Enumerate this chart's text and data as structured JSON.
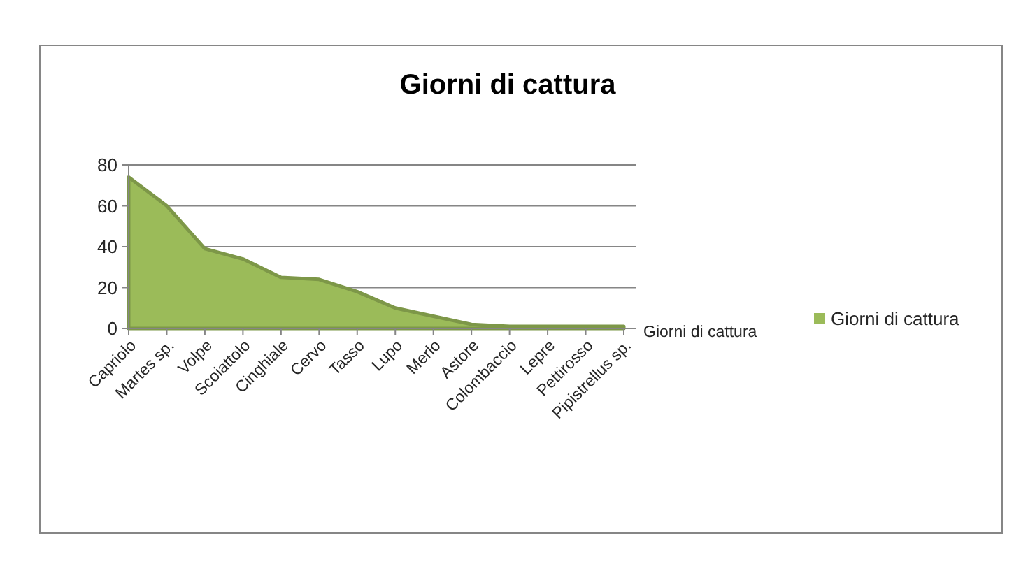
{
  "chart_data": {
    "type": "area",
    "title": "Giorni di cattura",
    "categories": [
      "Capriolo",
      "Martes sp.",
      "Volpe",
      "Scoiattolo",
      "Cinghiale",
      "Cervo",
      "Tasso",
      "Lupo",
      "Merlo",
      "Astore",
      "Colombaccio",
      "Lepre",
      "Pettirosso",
      "Pipistrellus sp."
    ],
    "series": [
      {
        "name": "Giorni di cattura",
        "color": "#9bbb59",
        "values": [
          74,
          60,
          39,
          34,
          25,
          24,
          18,
          10,
          6,
          2,
          1,
          1,
          1,
          1
        ]
      }
    ],
    "ylim": [
      0,
      80
    ],
    "yticks": [
      0,
      20,
      40,
      60,
      80
    ],
    "grid": "y",
    "legend": "right"
  }
}
